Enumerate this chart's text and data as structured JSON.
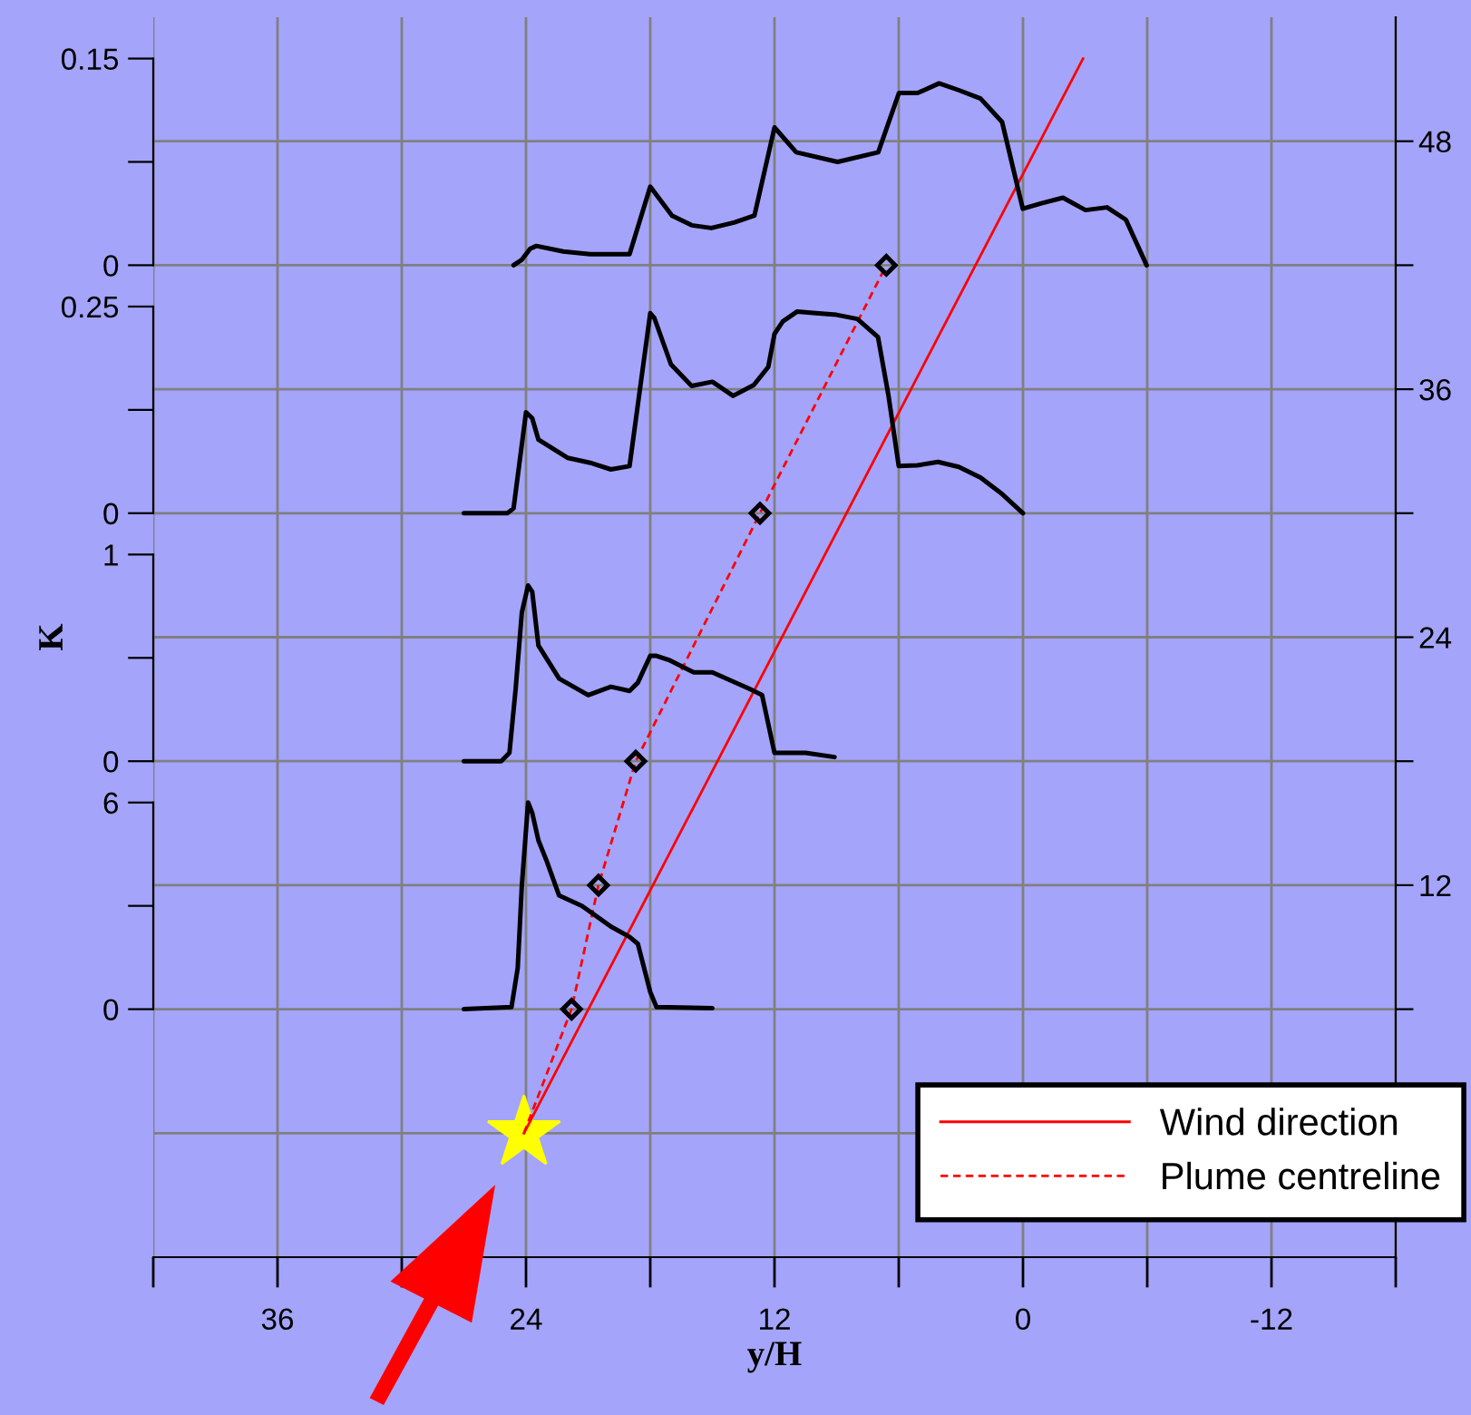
{
  "chart_data": [
    {
      "type": "line",
      "xlabel": "y/H",
      "ylabel": "K",
      "xlim": [
        42,
        -18
      ],
      "xticks": [
        {
          "value": 42,
          "label": null
        },
        36,
        {
          "value": 30,
          "label": null
        },
        24,
        {
          "value": 18,
          "label": null
        },
        12,
        {
          "value": 6,
          "label": null
        },
        0,
        {
          "value": -6,
          "label": null
        },
        -12,
        {
          "value": -18,
          "label": null
        }
      ],
      "y2lim": [
        -6,
        54
      ],
      "y2ticks": [
        {
          "value": 0,
          "label": null
        },
        {
          "value": 6,
          "label": null
        },
        12,
        {
          "value": 18,
          "label": null
        },
        24,
        {
          "value": 30,
          "label": null
        },
        36,
        {
          "value": 42,
          "label": null
        },
        48
      ],
      "grid": true,
      "legend": "bottom right",
      "series": [
        {
          "name": "Wind direction",
          "type": "line",
          "axis": "y2",
          "color": "#ff0000",
          "line_style": "solid",
          "x": [
            24.1,
            -2.9
          ],
          "values": [
            0,
            52
          ]
        },
        {
          "name": "Plume centreline",
          "type": "line",
          "axis": "y2",
          "color": "#ff0000",
          "line_style": "dashed",
          "x": [
            24.1,
            21.8,
            20.5,
            18.7,
            12.7,
            6.6
          ],
          "values": [
            0,
            6,
            12,
            18,
            30,
            42
          ]
        },
        {
          "type": "scatter",
          "axis": "y2",
          "color": "#000000",
          "marker": "diamond",
          "x": [
            21.8,
            20.5,
            18.7,
            12.7,
            6.6
          ],
          "values": [
            6,
            12,
            18,
            30,
            42
          ]
        },
        {
          "type": "scatter",
          "axis": "y2",
          "color": "#ffff00",
          "marker": "star",
          "x": [
            24.1
          ],
          "values": [
            0
          ]
        }
      ]
    },
    {
      "type": "line",
      "xlim": [
        42,
        -18
      ],
      "ylim": [
        0,
        0.15
      ],
      "yticks": [
        0,
        {
          "value": 0.075,
          "label": null
        },
        0.15
      ],
      "tick_labels": "y",
      "series": [
        {
          "color": "#000000",
          "x": [
            24.6,
            24.2,
            23.8,
            23.5,
            22.2,
            20.9,
            19.0,
            18.0,
            16.95,
            16.0,
            15.05,
            13.96,
            12.97,
            12.0,
            10.95,
            8.95,
            6.99,
            5.99,
            5.09,
            4.05,
            3.09,
            2.05,
            1.01,
            0.01,
            -0.89,
            -1.93,
            -3.02,
            -4.06,
            -4.97,
            -5.97
          ],
          "values": [
            0,
            0.004,
            0.012,
            0.014,
            0.01,
            0.008,
            0.008,
            0.057,
            0.036,
            0.029,
            0.027,
            0.031,
            0.036,
            0.1,
            0.082,
            0.075,
            0.082,
            0.125,
            0.125,
            0.132,
            0.127,
            0.121,
            0.104,
            0.041,
            0.045,
            0.049,
            0.04,
            0.042,
            0.033,
            0
          ]
        }
      ]
    },
    {
      "type": "line",
      "xlim": [
        42,
        -18
      ],
      "ylim": [
        0,
        0.25
      ],
      "yticks": [
        0,
        {
          "value": 0.125,
          "label": null
        },
        0.25
      ],
      "tick_labels": "y",
      "series": [
        {
          "color": "#000000",
          "x": [
            27.0,
            24.9,
            24.6,
            24.0,
            23.7,
            23.4,
            22.0,
            20.9,
            19.9,
            19.0,
            18.0,
            17.8,
            17.0,
            16.0,
            15.0,
            14.0,
            13.0,
            12.3,
            12.0,
            11.6,
            10.9,
            10.0,
            9.0,
            8.0,
            7.0,
            6.5,
            6.0,
            5.1,
            4.1,
            3.1,
            2.05,
            1.0,
            0.0
          ],
          "values": [
            0,
            0,
            0.006,
            0.122,
            0.115,
            0.089,
            0.067,
            0.061,
            0.053,
            0.057,
            0.242,
            0.236,
            0.18,
            0.154,
            0.159,
            0.142,
            0.155,
            0.177,
            0.217,
            0.232,
            0.244,
            0.242,
            0.24,
            0.235,
            0.213,
            0.143,
            0.057,
            0.058,
            0.062,
            0.056,
            0.043,
            0.023,
            0
          ]
        }
      ]
    },
    {
      "type": "line",
      "xlim": [
        42,
        -18
      ],
      "ylim": [
        0,
        1
      ],
      "yticks": [
        0,
        {
          "value": 0.5,
          "label": null
        },
        1
      ],
      "tick_labels": "y",
      "series": [
        {
          "color": "#000000",
          "x": [
            27.0,
            25.2,
            24.8,
            24.5,
            24.2,
            23.9,
            23.7,
            23.4,
            22.4,
            21.0,
            19.9,
            19.0,
            18.6,
            18.0,
            17.7,
            17.1,
            15.9,
            15.0,
            13.2,
            12.6,
            12.0,
            10.5,
            9.1
          ],
          "values": [
            0,
            0,
            0.04,
            0.35,
            0.72,
            0.85,
            0.82,
            0.56,
            0.4,
            0.32,
            0.36,
            0.34,
            0.38,
            0.51,
            0.51,
            0.49,
            0.43,
            0.43,
            0.35,
            0.32,
            0.04,
            0.04,
            0.02
          ]
        }
      ]
    },
    {
      "type": "line",
      "xlim": [
        42,
        -18
      ],
      "ylim": [
        0,
        6
      ],
      "yticks": [
        0,
        {
          "value": 3,
          "label": null
        },
        6
      ],
      "tick_labels": "y",
      "series": [
        {
          "color": "#000000",
          "x": [
            27.0,
            24.7,
            24.4,
            24.2,
            23.9,
            23.7,
            23.4,
            23.0,
            22.4,
            21.3,
            19.9,
            19.0,
            18.6,
            18.0,
            17.7,
            15.0
          ],
          "values": [
            0,
            0.06,
            1.2,
            3.6,
            6.0,
            5.7,
            4.9,
            4.3,
            3.3,
            3.0,
            2.4,
            2.1,
            1.9,
            0.5,
            0.06,
            0.03
          ]
        }
      ]
    }
  ]
}
